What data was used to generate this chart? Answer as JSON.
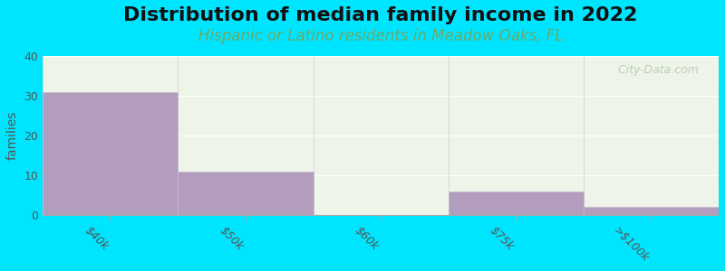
{
  "title": "Distribution of median family income in 2022",
  "subtitle": "Hispanic or Latino residents in Meadow Oaks, FL",
  "bin_edges": [
    0,
    1,
    2,
    3,
    4,
    5
  ],
  "tick_positions": [
    0.5,
    1.5,
    2.5,
    3.5,
    4.5
  ],
  "tick_labels": [
    "$40k",
    "$50k",
    "$60k",
    "$75k",
    ">$100k"
  ],
  "values": [
    31,
    11,
    0,
    6,
    2
  ],
  "bar_color": "#b39dbd",
  "bar_edge_color": "#c8b8d4",
  "background_color": "#00e5ff",
  "plot_bg_color": "#eef5e8",
  "ylabel": "families",
  "ylim": [
    0,
    40
  ],
  "yticks": [
    0,
    10,
    20,
    30,
    40
  ],
  "title_fontsize": 16,
  "subtitle_fontsize": 12,
  "subtitle_color": "#6aaa6a",
  "watermark": "  City-Data.com",
  "title_color": "#111111"
}
